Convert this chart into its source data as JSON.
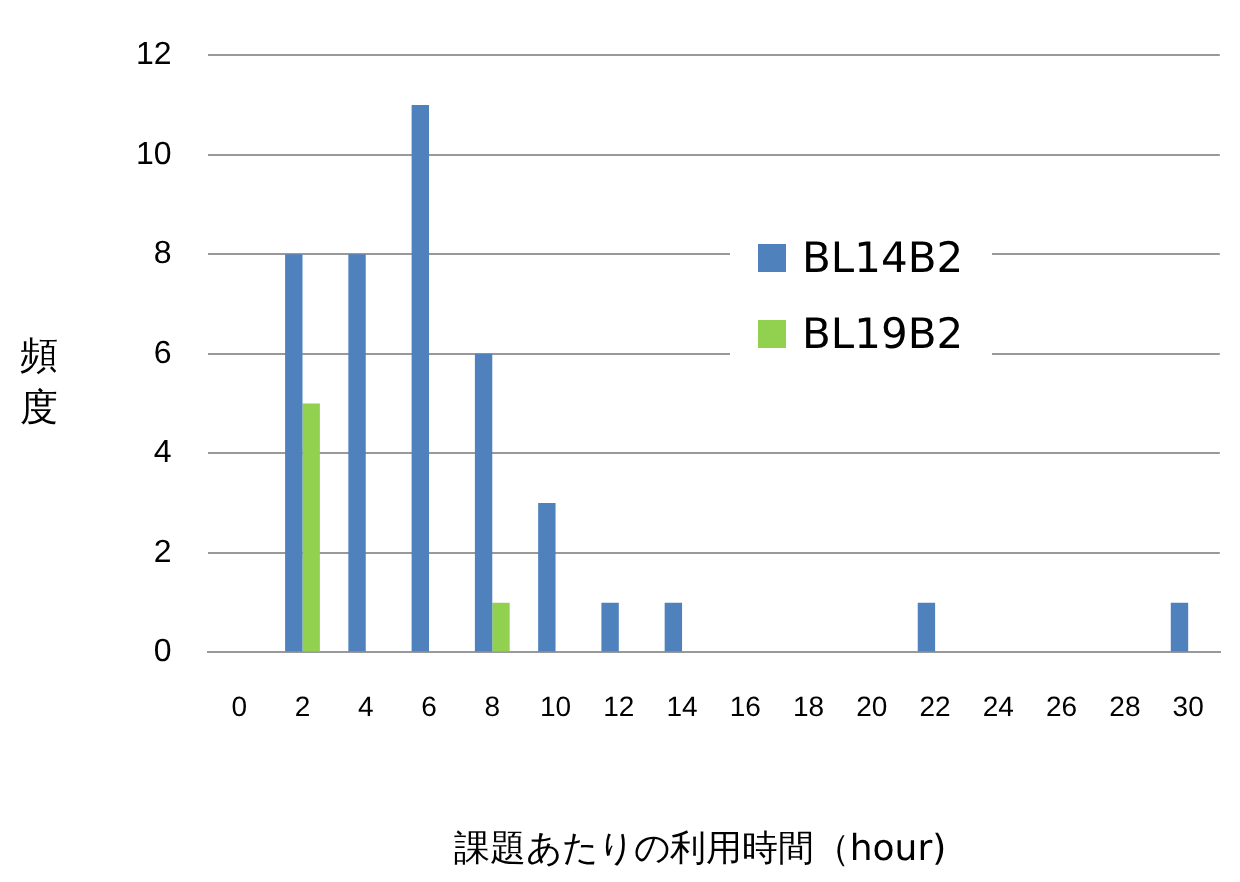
{
  "chart_data": {
    "type": "bar",
    "xlabel": "課題あたりの利用時間（hour)",
    "ylabel": "頻度",
    "categories": [
      "0",
      "2",
      "4",
      "6",
      "8",
      "10",
      "12",
      "14",
      "16",
      "18",
      "20",
      "22",
      "24",
      "26",
      "28",
      "30"
    ],
    "series": [
      {
        "name": "BL14B2",
        "color": "#4f81bd",
        "values": [
          0,
          8,
          8,
          11,
          6,
          3,
          1,
          1,
          0,
          0,
          0,
          1,
          0,
          0,
          0,
          1
        ]
      },
      {
        "name": "BL19B2",
        "color": "#92d050",
        "values": [
          0,
          5,
          0,
          0,
          1,
          0,
          0,
          0,
          0,
          0,
          0,
          0,
          0,
          0,
          0,
          0
        ]
      }
    ],
    "ylim": [
      0,
      12
    ],
    "yticks": [
      0,
      2,
      4,
      6,
      8,
      10,
      12
    ],
    "grid": "y",
    "legend": "right"
  }
}
